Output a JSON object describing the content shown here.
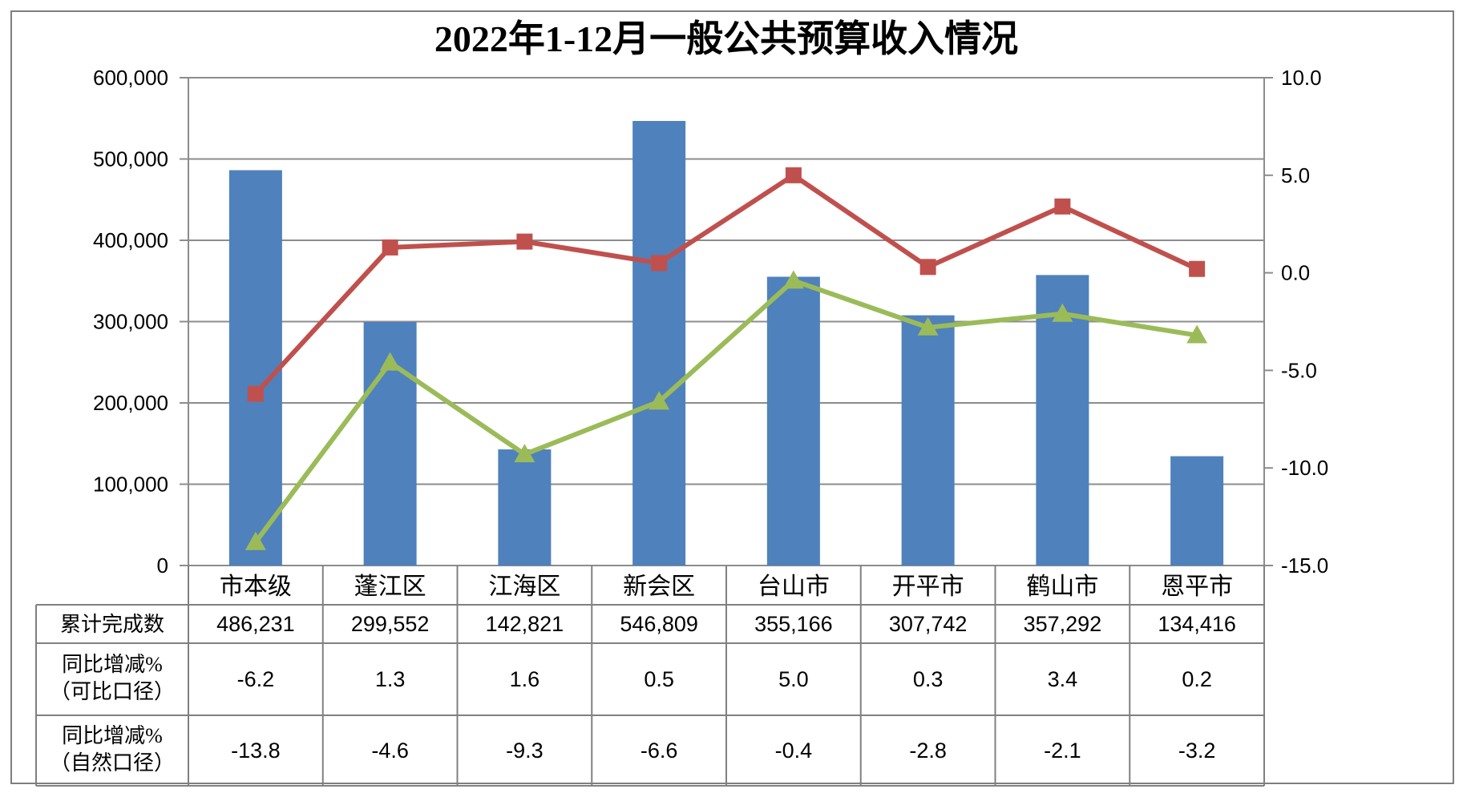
{
  "chart_data": {
    "type": "combo",
    "title": "2022年1-12月一般公共预算收入情况",
    "categories": [
      "市本级",
      "蓬江区",
      "江海区",
      "新会区",
      "台山市",
      "开平市",
      "鹤山市",
      "恩平市"
    ],
    "series": [
      {
        "name": "累计完成数",
        "type": "bar",
        "axis": "left",
        "marker": "none",
        "color": "#4F81BD",
        "values": [
          486231,
          299552,
          142821,
          546809,
          355166,
          307742,
          357292,
          134416
        ]
      },
      {
        "name": "同比增减%（可比口径）",
        "type": "line",
        "axis": "right",
        "marker": "square",
        "color": "#C0504D",
        "values": [
          -6.2,
          1.3,
          1.6,
          0.5,
          5.0,
          0.3,
          3.4,
          0.2
        ]
      },
      {
        "name": "同比增减%（自然口径）",
        "type": "line",
        "axis": "right",
        "marker": "triangle",
        "color": "#9BBB59",
        "values": [
          -13.8,
          -4.6,
          -9.3,
          -6.6,
          -0.4,
          -2.8,
          -2.1,
          -3.2
        ]
      }
    ],
    "left_axis": {
      "min": 0,
      "max": 600000,
      "tick_step": 100000,
      "tick_labels": [
        "600,000",
        "500,000",
        "400,000",
        "300,000",
        "200,000",
        "100,000",
        "0"
      ]
    },
    "right_axis": {
      "min": -15,
      "max": 10,
      "tick_step": 5,
      "tick_labels": [
        "10.0",
        "5.0",
        "0.0",
        "-5.0",
        "-10.0",
        "-15.0"
      ]
    },
    "grid": true,
    "legend_position": "none"
  },
  "table": {
    "rows": [
      {
        "label": "累计完成数",
        "label_lines": [
          "累计完成数"
        ],
        "values": [
          "486,231",
          "299,552",
          "142,821",
          "546,809",
          "355,166",
          "307,742",
          "357,292",
          "134,416"
        ]
      },
      {
        "label": "同比增减%（可比口径）",
        "label_lines": [
          "同比增减%",
          "（可比口径）"
        ],
        "values": [
          "-6.2",
          "1.3",
          "1.6",
          "0.5",
          "5.0",
          "0.3",
          "3.4",
          "0.2"
        ]
      },
      {
        "label": "同比增减%（自然口径）",
        "label_lines": [
          "同比增减%",
          "（自然口径）"
        ],
        "values": [
          "-13.8",
          "-4.6",
          "-9.3",
          "-6.6",
          "-0.4",
          "-2.8",
          "-2.1",
          "-3.2"
        ]
      }
    ]
  },
  "colors": {
    "bar": "#4F81BD",
    "line_comparable": "#C0504D",
    "line_natural": "#9BBB59",
    "gridline": "#8c8c8c",
    "table_border": "#808080",
    "outer_border": "#7f7f7f",
    "text": "#000000",
    "background": "#FFFFFF"
  }
}
